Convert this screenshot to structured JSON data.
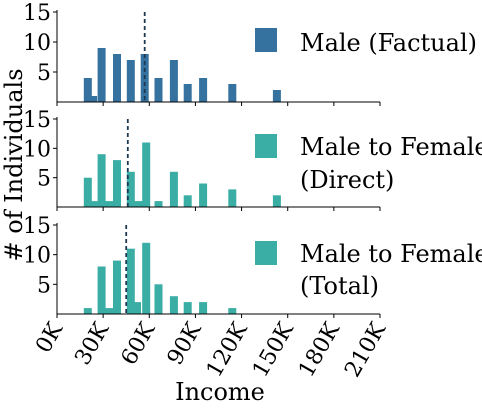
{
  "figure": {
    "ylabel": "# of Individuals",
    "xlabel": "Income",
    "x_tick_labels": [
      "0K",
      "30K",
      "60K",
      "90K",
      "120K",
      "150K",
      "180K",
      "210K"
    ]
  },
  "chart_data": [
    {
      "type": "bar",
      "legend": "Male (Factual)",
      "color": "#3572a0",
      "mean_line": 57000,
      "xlim": [
        0,
        210000
      ],
      "ylim": [
        0,
        15
      ],
      "yticks": [
        5,
        10,
        15
      ],
      "bins_x": [
        20000,
        23500,
        29000,
        39000,
        48000,
        57000,
        66000,
        76000,
        85000,
        95000,
        114000,
        143000
      ],
      "values": [
        4,
        1,
        9,
        8,
        7,
        8,
        4,
        7,
        3,
        4,
        3,
        2
      ]
    },
    {
      "type": "bar",
      "legend_lines": [
        "Male to Female",
        "(Direct)"
      ],
      "color": "#3aada4",
      "mean_line": 46000,
      "xlim": [
        0,
        210000
      ],
      "ylim": [
        0,
        15
      ],
      "yticks": [
        5,
        10,
        15
      ],
      "bins_x": [
        20000,
        24000,
        29000,
        34000,
        39000,
        48000,
        53000,
        58000,
        66000,
        76000,
        85000,
        95000,
        114000,
        143000
      ],
      "values": [
        5,
        1,
        9,
        1,
        8,
        6,
        1,
        11,
        1,
        6,
        2,
        4,
        3,
        2
      ]
    },
    {
      "type": "bar",
      "legend_lines": [
        "Male to Female",
        "(Total)"
      ],
      "color": "#3aada4",
      "mean_line": 45000,
      "xlim": [
        0,
        210000
      ],
      "ylim": [
        0,
        15
      ],
      "yticks": [
        5,
        10,
        15
      ],
      "bins_x": [
        20000,
        29000,
        34000,
        39000,
        48000,
        52000,
        58000,
        66000,
        76000,
        85000,
        95000,
        114000
      ],
      "values": [
        1,
        8,
        1,
        9,
        11,
        2,
        12,
        5,
        3,
        2,
        2,
        1
      ]
    }
  ]
}
